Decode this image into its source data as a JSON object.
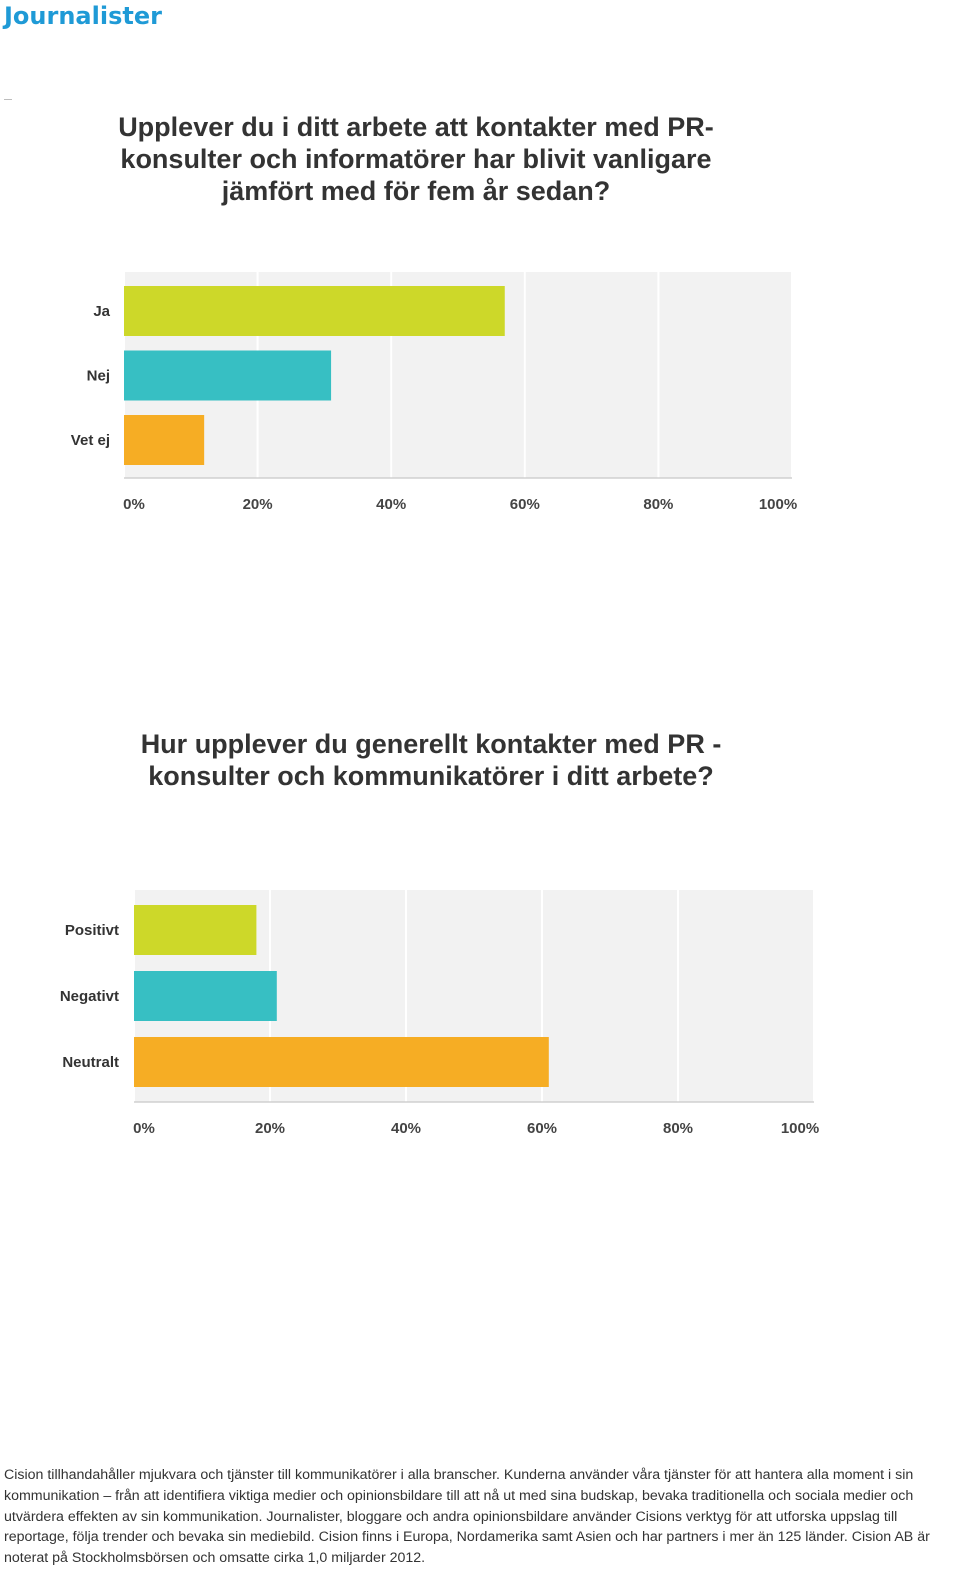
{
  "page": {
    "heading": "Journalister",
    "footer": "Cision tillhandahåller mjukvara och tjänster till kommunikatörer i alla branscher. Kunderna använder våra tjänster för att hantera alla moment i sin kommunikation – från att identifiera viktiga medier och opinionsbildare till att nå ut med sina budskap, bevaka traditionella och sociala medier och utvärdera effekten av sin kommunikation. Journalister, bloggare och andra opinionsbildare använder Cisions verktyg för att utforska uppslag till reportage, följa trender och bevaka sin mediebild. Cision finns i Europa, Nordamerika samt Asien och har partners i mer än 125 länder. Cision AB är noterat på Stockholmsbörsen och omsatte cirka 1,0 miljarder 2012."
  },
  "chart_data": [
    {
      "type": "bar",
      "orientation": "horizontal",
      "title": "Upplever du i ditt arbete att kontakter med PR-konsulter och informatörer har blivit vanligare jämfört med för fem år sedan?",
      "categories": [
        "Ja",
        "Nej",
        "Vet ej"
      ],
      "values": [
        57,
        31,
        12
      ],
      "colors": [
        "#cdd829",
        "#37bfc3",
        "#f6ad24"
      ],
      "xlim": [
        0,
        100
      ],
      "xticks": [
        "0%",
        "20%",
        "40%",
        "60%",
        "80%",
        "100%"
      ],
      "grid": true,
      "background": "#f2f2f2"
    },
    {
      "type": "bar",
      "orientation": "horizontal",
      "title": "Hur upplever du generellt kontakter med PR -konsulter och kommunikatörer i ditt arbete?",
      "categories": [
        "Positivt",
        "Negativt",
        "Neutralt"
      ],
      "values": [
        18,
        21,
        61
      ],
      "colors": [
        "#cdd829",
        "#37bfc3",
        "#f6ad24"
      ],
      "xlim": [
        0,
        100
      ],
      "xticks": [
        "0%",
        "20%",
        "40%",
        "60%",
        "80%",
        "100%"
      ],
      "grid": true,
      "background": "#f2f2f2"
    }
  ]
}
